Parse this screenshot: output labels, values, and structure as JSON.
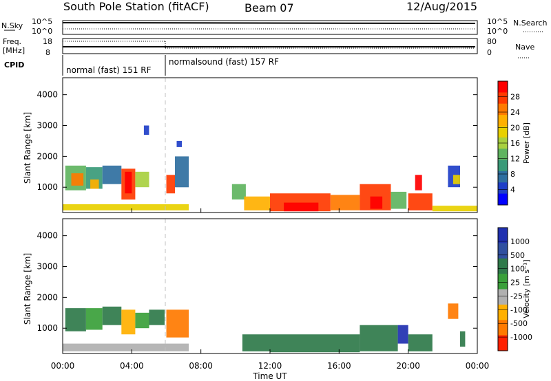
{
  "header": {
    "station": "South Pole Station (fitACF)",
    "beam": "Beam 07",
    "date": "12/Aug/2015"
  },
  "top_panels": {
    "nsky_label": "N.Sky",
    "nsky_ticks": [
      "10^5",
      "10^0"
    ],
    "nsearch_label": "N.Search",
    "nsearch_ticks": [
      "10^5",
      "10^0"
    ],
    "freq_label_1": "Freq.",
    "freq_label_2": "[MHz]",
    "freq_ticks": [
      "18",
      "8"
    ],
    "nave_label": "Nave",
    "nave_ticks": [
      "80",
      "0"
    ],
    "cpid_label": "CPID",
    "cpid_segments": [
      {
        "label": "normal (fast) 151 RF",
        "start": 0.0,
        "end": 5.95
      },
      {
        "label": "normalsound (fast) 157 RF",
        "start": 5.95,
        "end": 24.0
      }
    ]
  },
  "chart_data": [
    {
      "type": "heatmap",
      "name": "power",
      "ylabel": "Slant Range [km]",
      "y_ticks": [
        "4000",
        "3000",
        "2000",
        "1000"
      ],
      "ylim": [
        180,
        4550
      ],
      "x_ticks": [
        "00:00",
        "04:00",
        "08:00",
        "12:00",
        "16:00",
        "20:00",
        "00:00"
      ],
      "xlim_hours": [
        0,
        24
      ],
      "colorbar": {
        "label": "Power [dB]",
        "ticks": [
          "28",
          "24",
          "20",
          "16",
          "12",
          "8",
          "4"
        ],
        "colors": [
          "#ff0000",
          "#ff3a00",
          "#ff7a00",
          "#ffb000",
          "#e8d000",
          "#a8d040",
          "#5fb45f",
          "#3a9a78",
          "#2f6fa0",
          "#1f3fc8",
          "#0000ff"
        ]
      },
      "cells": [
        {
          "t0": 0.15,
          "t1": 1.35,
          "r0": 900,
          "r1": 1700,
          "c": 6
        },
        {
          "t0": 0.5,
          "t1": 1.2,
          "r0": 1050,
          "r1": 1450,
          "c": 2
        },
        {
          "t0": 1.35,
          "t1": 2.3,
          "r0": 950,
          "r1": 1650,
          "c": 7
        },
        {
          "t0": 1.6,
          "t1": 2.1,
          "r0": 950,
          "r1": 1250,
          "c": 3
        },
        {
          "t0": 2.3,
          "t1": 3.4,
          "r0": 1100,
          "r1": 1700,
          "c": 8
        },
        {
          "t0": 3.4,
          "t1": 4.2,
          "r0": 600,
          "r1": 1600,
          "c": 1
        },
        {
          "t0": 3.6,
          "t1": 4.0,
          "r0": 800,
          "r1": 1500,
          "c": 0
        },
        {
          "t0": 4.2,
          "t1": 5.0,
          "r0": 1000,
          "r1": 1500,
          "c": 5
        },
        {
          "t0": 4.7,
          "t1": 5.0,
          "r0": 2700,
          "r1": 3000,
          "c": 9
        },
        {
          "t0": 6.0,
          "t1": 6.5,
          "r0": 800,
          "r1": 1400,
          "c": 1
        },
        {
          "t0": 6.5,
          "t1": 7.3,
          "r0": 1000,
          "r1": 2000,
          "c": 8
        },
        {
          "t0": 6.6,
          "t1": 6.9,
          "r0": 2300,
          "r1": 2500,
          "c": 9
        },
        {
          "t0": 0.0,
          "t1": 7.3,
          "r0": 250,
          "r1": 450,
          "c": 4
        },
        {
          "t0": 9.8,
          "t1": 10.6,
          "r0": 600,
          "r1": 1100,
          "c": 6
        },
        {
          "t0": 10.5,
          "t1": 12.0,
          "r0": 250,
          "r1": 700,
          "c": 3
        },
        {
          "t0": 12.0,
          "t1": 15.5,
          "r0": 220,
          "r1": 800,
          "c": 1
        },
        {
          "t0": 12.8,
          "t1": 14.8,
          "r0": 220,
          "r1": 500,
          "c": 0
        },
        {
          "t0": 15.5,
          "t1": 17.2,
          "r0": 250,
          "r1": 750,
          "c": 2
        },
        {
          "t0": 17.2,
          "t1": 19.0,
          "r0": 250,
          "r1": 1100,
          "c": 1
        },
        {
          "t0": 17.8,
          "t1": 18.5,
          "r0": 300,
          "r1": 700,
          "c": 0
        },
        {
          "t0": 19.0,
          "t1": 19.9,
          "r0": 300,
          "r1": 850,
          "c": 6
        },
        {
          "t0": 20.0,
          "t1": 21.4,
          "r0": 250,
          "r1": 800,
          "c": 1
        },
        {
          "t0": 20.4,
          "t1": 20.8,
          "r0": 900,
          "r1": 1400,
          "c": 0
        },
        {
          "t0": 22.3,
          "t1": 23.0,
          "r0": 1000,
          "r1": 1700,
          "c": 9
        },
        {
          "t0": 22.6,
          "t1": 23.0,
          "r0": 1100,
          "r1": 1400,
          "c": 4
        },
        {
          "t0": 21.4,
          "t1": 24.0,
          "r0": 220,
          "r1": 400,
          "c": 4
        }
      ]
    },
    {
      "type": "heatmap",
      "name": "velocity",
      "ylabel": "Slant Range [km]",
      "y_ticks": [
        "4000",
        "3000",
        "2000",
        "1000"
      ],
      "ylim": [
        180,
        4550
      ],
      "x_ticks": [
        "00:00",
        "04:00",
        "08:00",
        "12:00",
        "16:00",
        "20:00",
        "00:00"
      ],
      "xlim_hours": [
        0,
        24
      ],
      "xlabel": "Time UT",
      "colorbar": {
        "label": "Velocity [m s⁻¹]",
        "ticks": [
          "1000",
          "500",
          "100",
          "25",
          "-25",
          "-100",
          "-500",
          "-1000"
        ],
        "colors": [
          "#2030b0",
          "#3050a0",
          "#2f7a4a",
          "#3aa03a",
          "#b0b0b0",
          "#ffb000",
          "#ff7a00",
          "#ff2000"
        ]
      },
      "cells": [
        {
          "t0": 0.15,
          "t1": 1.35,
          "r0": 900,
          "r1": 1650,
          "c": 2
        },
        {
          "t0": 1.35,
          "t1": 2.3,
          "r0": 950,
          "r1": 1650,
          "c": 3
        },
        {
          "t0": 2.3,
          "t1": 3.4,
          "r0": 1100,
          "r1": 1700,
          "c": 2
        },
        {
          "t0": 3.4,
          "t1": 4.2,
          "r0": 800,
          "r1": 1600,
          "c": 5
        },
        {
          "t0": 4.2,
          "t1": 5.0,
          "r0": 1000,
          "r1": 1500,
          "c": 3
        },
        {
          "t0": 5.0,
          "t1": 5.9,
          "r0": 1100,
          "r1": 1600,
          "c": 2
        },
        {
          "t0": 6.0,
          "t1": 7.3,
          "r0": 700,
          "r1": 1600,
          "c": 6
        },
        {
          "t0": 0.0,
          "t1": 7.3,
          "r0": 250,
          "r1": 500,
          "c": 4
        },
        {
          "t0": 10.4,
          "t1": 12.0,
          "r0": 250,
          "r1": 800,
          "c": 2
        },
        {
          "t0": 12.0,
          "t1": 17.2,
          "r0": 220,
          "r1": 800,
          "c": 2
        },
        {
          "t0": 17.2,
          "t1": 19.4,
          "r0": 250,
          "r1": 1100,
          "c": 2
        },
        {
          "t0": 19.4,
          "t1": 20.0,
          "r0": 500,
          "r1": 1100,
          "c": 0
        },
        {
          "t0": 20.0,
          "t1": 21.4,
          "r0": 250,
          "r1": 800,
          "c": 2
        },
        {
          "t0": 22.3,
          "t1": 22.9,
          "r0": 1300,
          "r1": 1800,
          "c": 6
        },
        {
          "t0": 23.0,
          "t1": 23.3,
          "r0": 400,
          "r1": 900,
          "c": 2
        }
      ]
    }
  ]
}
